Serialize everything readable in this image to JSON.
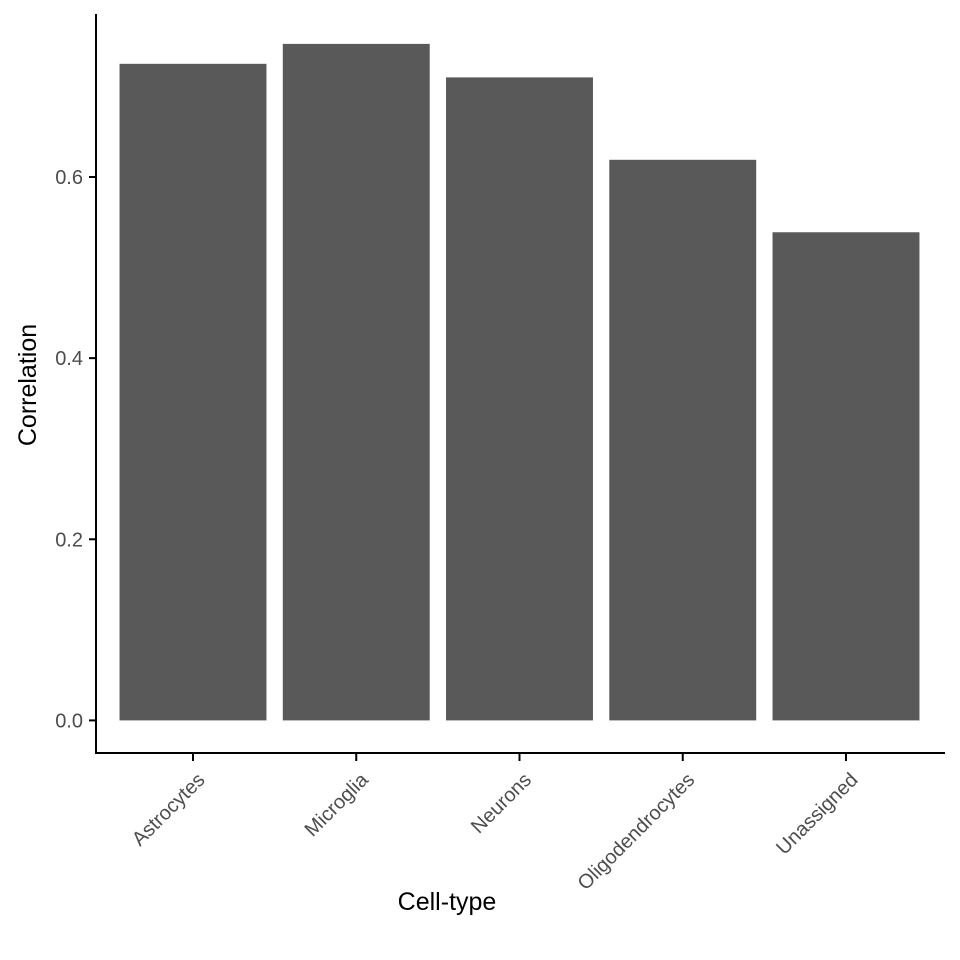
{
  "chart_data": {
    "type": "bar",
    "title": "",
    "xlabel": "Cell-type",
    "ylabel": "Correlation",
    "categories": [
      "Astrocytes",
      "Microglia",
      "Neurons",
      "Oligodendrocytes",
      "Unassigned"
    ],
    "values": [
      0.725,
      0.747,
      0.71,
      0.619,
      0.539
    ],
    "ylim": [
      -0.036,
      0.78
    ],
    "yticks": [
      0.0,
      0.2,
      0.4,
      0.6
    ],
    "ytick_labels": [
      "0.0",
      "0.2",
      "0.4",
      "0.6"
    ],
    "grid": false,
    "bar_color": "#595959",
    "axis_color": "#000000",
    "tick_label_color": "#4d4d4d"
  }
}
